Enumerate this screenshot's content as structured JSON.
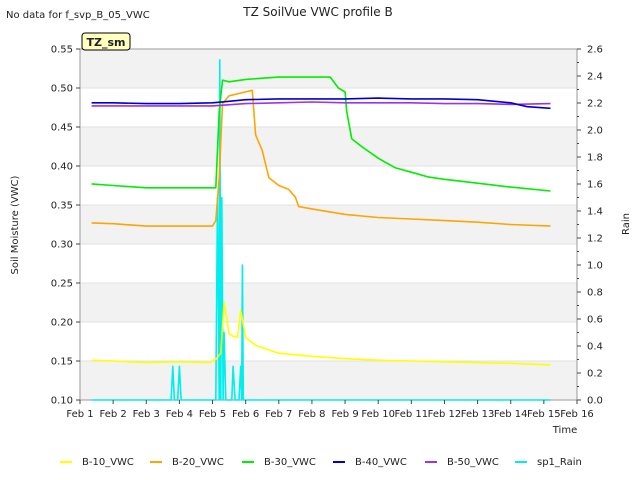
{
  "no_data_note": "No data for f_svp_B_05_VWC",
  "badge": "TZ_sm",
  "chart_data": {
    "type": "line",
    "title": "TZ SoilVue VWC profile B",
    "xlabel": "Time",
    "ylabel": "Soil Moisture (VWC)",
    "y2label": "Rain",
    "xlim": [
      1,
      16
    ],
    "ylim": [
      0.1,
      0.55
    ],
    "y2lim": [
      0.0,
      2.6
    ],
    "x_ticks": [
      "Feb 1",
      "Feb 2",
      "Feb 3",
      "Feb 4",
      "Feb 5",
      "Feb 6",
      "Feb 7",
      "Feb 8",
      "Feb 9",
      "Feb 10",
      "Feb 11",
      "Feb 12",
      "Feb 13",
      "Feb 14",
      "Feb 15",
      "Feb 16"
    ],
    "y_ticks": [
      "0.10",
      "0.15",
      "0.20",
      "0.25",
      "0.30",
      "0.35",
      "0.40",
      "0.45",
      "0.50",
      "0.55"
    ],
    "y2_ticks": [
      "0.0",
      "0.2",
      "0.4",
      "0.6",
      "0.8",
      "1.0",
      "1.2",
      "1.4",
      "1.6",
      "1.8",
      "2.0",
      "2.2",
      "2.4",
      "2.6"
    ],
    "grid": "horizontal bands",
    "legend_position": "bottom",
    "series": [
      {
        "name": "B-10_VWC",
        "color": "#ffff00",
        "axis": "left",
        "points": [
          [
            1.35,
            0.151
          ],
          [
            2,
            0.15
          ],
          [
            3,
            0.148
          ],
          [
            4,
            0.149
          ],
          [
            4.9,
            0.148
          ],
          [
            5.1,
            0.152
          ],
          [
            5.25,
            0.16
          ],
          [
            5.35,
            0.225
          ],
          [
            5.5,
            0.185
          ],
          [
            5.6,
            0.182
          ],
          [
            5.75,
            0.18
          ],
          [
            5.85,
            0.215
          ],
          [
            6,
            0.18
          ],
          [
            6.3,
            0.17
          ],
          [
            7,
            0.16
          ],
          [
            8,
            0.156
          ],
          [
            9,
            0.153
          ],
          [
            10,
            0.151
          ],
          [
            11,
            0.15
          ],
          [
            12,
            0.149
          ],
          [
            13,
            0.148
          ],
          [
            14,
            0.147
          ],
          [
            15.2,
            0.145
          ]
        ]
      },
      {
        "name": "B-20_VWC",
        "color": "#ffa500",
        "axis": "left",
        "points": [
          [
            1.35,
            0.327
          ],
          [
            2,
            0.326
          ],
          [
            3,
            0.323
          ],
          [
            4,
            0.323
          ],
          [
            5,
            0.323
          ],
          [
            5.1,
            0.33
          ],
          [
            5.2,
            0.385
          ],
          [
            5.3,
            0.48
          ],
          [
            5.5,
            0.49
          ],
          [
            6,
            0.495
          ],
          [
            6.2,
            0.497
          ],
          [
            6.3,
            0.44
          ],
          [
            6.5,
            0.42
          ],
          [
            6.7,
            0.385
          ],
          [
            7,
            0.375
          ],
          [
            7.3,
            0.37
          ],
          [
            7.5,
            0.36
          ],
          [
            7.6,
            0.348
          ],
          [
            8,
            0.345
          ],
          [
            9,
            0.338
          ],
          [
            10,
            0.334
          ],
          [
            11,
            0.332
          ],
          [
            12,
            0.33
          ],
          [
            13,
            0.328
          ],
          [
            14,
            0.325
          ],
          [
            15.2,
            0.323
          ]
        ]
      },
      {
        "name": "B-30_VWC",
        "color": "#00ee00",
        "axis": "left",
        "points": [
          [
            1.35,
            0.377
          ],
          [
            2,
            0.375
          ],
          [
            3,
            0.372
          ],
          [
            4,
            0.372
          ],
          [
            5,
            0.372
          ],
          [
            5.1,
            0.372
          ],
          [
            5.2,
            0.47
          ],
          [
            5.3,
            0.51
          ],
          [
            5.5,
            0.508
          ],
          [
            6,
            0.511
          ],
          [
            7,
            0.514
          ],
          [
            8,
            0.514
          ],
          [
            8.55,
            0.514
          ],
          [
            8.8,
            0.5
          ],
          [
            9,
            0.495
          ],
          [
            9.05,
            0.47
          ],
          [
            9.2,
            0.435
          ],
          [
            9.5,
            0.425
          ],
          [
            10,
            0.41
          ],
          [
            10.5,
            0.398
          ],
          [
            11,
            0.392
          ],
          [
            11.5,
            0.386
          ],
          [
            12,
            0.383
          ],
          [
            13,
            0.378
          ],
          [
            14,
            0.373
          ],
          [
            15.2,
            0.368
          ]
        ]
      },
      {
        "name": "B-40_VWC",
        "color": "#0000cc",
        "axis": "left",
        "points": [
          [
            1.35,
            0.481
          ],
          [
            2,
            0.481
          ],
          [
            3,
            0.48
          ],
          [
            4,
            0.48
          ],
          [
            5,
            0.481
          ],
          [
            5.5,
            0.483
          ],
          [
            6,
            0.485
          ],
          [
            7,
            0.486
          ],
          [
            8,
            0.486
          ],
          [
            9,
            0.486
          ],
          [
            10,
            0.487
          ],
          [
            11,
            0.486
          ],
          [
            12,
            0.486
          ],
          [
            13,
            0.485
          ],
          [
            14,
            0.481
          ],
          [
            14.5,
            0.476
          ],
          [
            15.2,
            0.474
          ]
        ]
      },
      {
        "name": "B-50_VWC",
        "color": "#9933ee",
        "axis": "left",
        "points": [
          [
            1.35,
            0.477
          ],
          [
            2,
            0.477
          ],
          [
            3,
            0.477
          ],
          [
            4,
            0.477
          ],
          [
            5,
            0.477
          ],
          [
            6,
            0.48
          ],
          [
            7,
            0.481
          ],
          [
            8,
            0.482
          ],
          [
            9,
            0.481
          ],
          [
            10,
            0.481
          ],
          [
            11,
            0.481
          ],
          [
            12,
            0.48
          ],
          [
            13,
            0.48
          ],
          [
            14,
            0.479
          ],
          [
            15.2,
            0.48
          ]
        ]
      },
      {
        "name": "sp1_Rain",
        "color": "#00eeee",
        "axis": "right",
        "points": [
          [
            1.35,
            0
          ],
          [
            3.75,
            0
          ],
          [
            3.8,
            0.25
          ],
          [
            3.85,
            0
          ],
          [
            3.95,
            0
          ],
          [
            4,
            0.25
          ],
          [
            4.05,
            0
          ],
          [
            5.1,
            0
          ],
          [
            5.15,
            1.5
          ],
          [
            5.2,
            0
          ],
          [
            5.22,
            2.52
          ],
          [
            5.25,
            0
          ],
          [
            5.28,
            1.5
          ],
          [
            5.32,
            0
          ],
          [
            5.35,
            0.5
          ],
          [
            5.4,
            0
          ],
          [
            5.58,
            0
          ],
          [
            5.62,
            0.25
          ],
          [
            5.68,
            0
          ],
          [
            5.8,
            0
          ],
          [
            5.85,
            0.25
          ],
          [
            5.88,
            0
          ],
          [
            5.9,
            1.0
          ],
          [
            5.93,
            0
          ],
          [
            15.2,
            0
          ]
        ]
      }
    ]
  }
}
